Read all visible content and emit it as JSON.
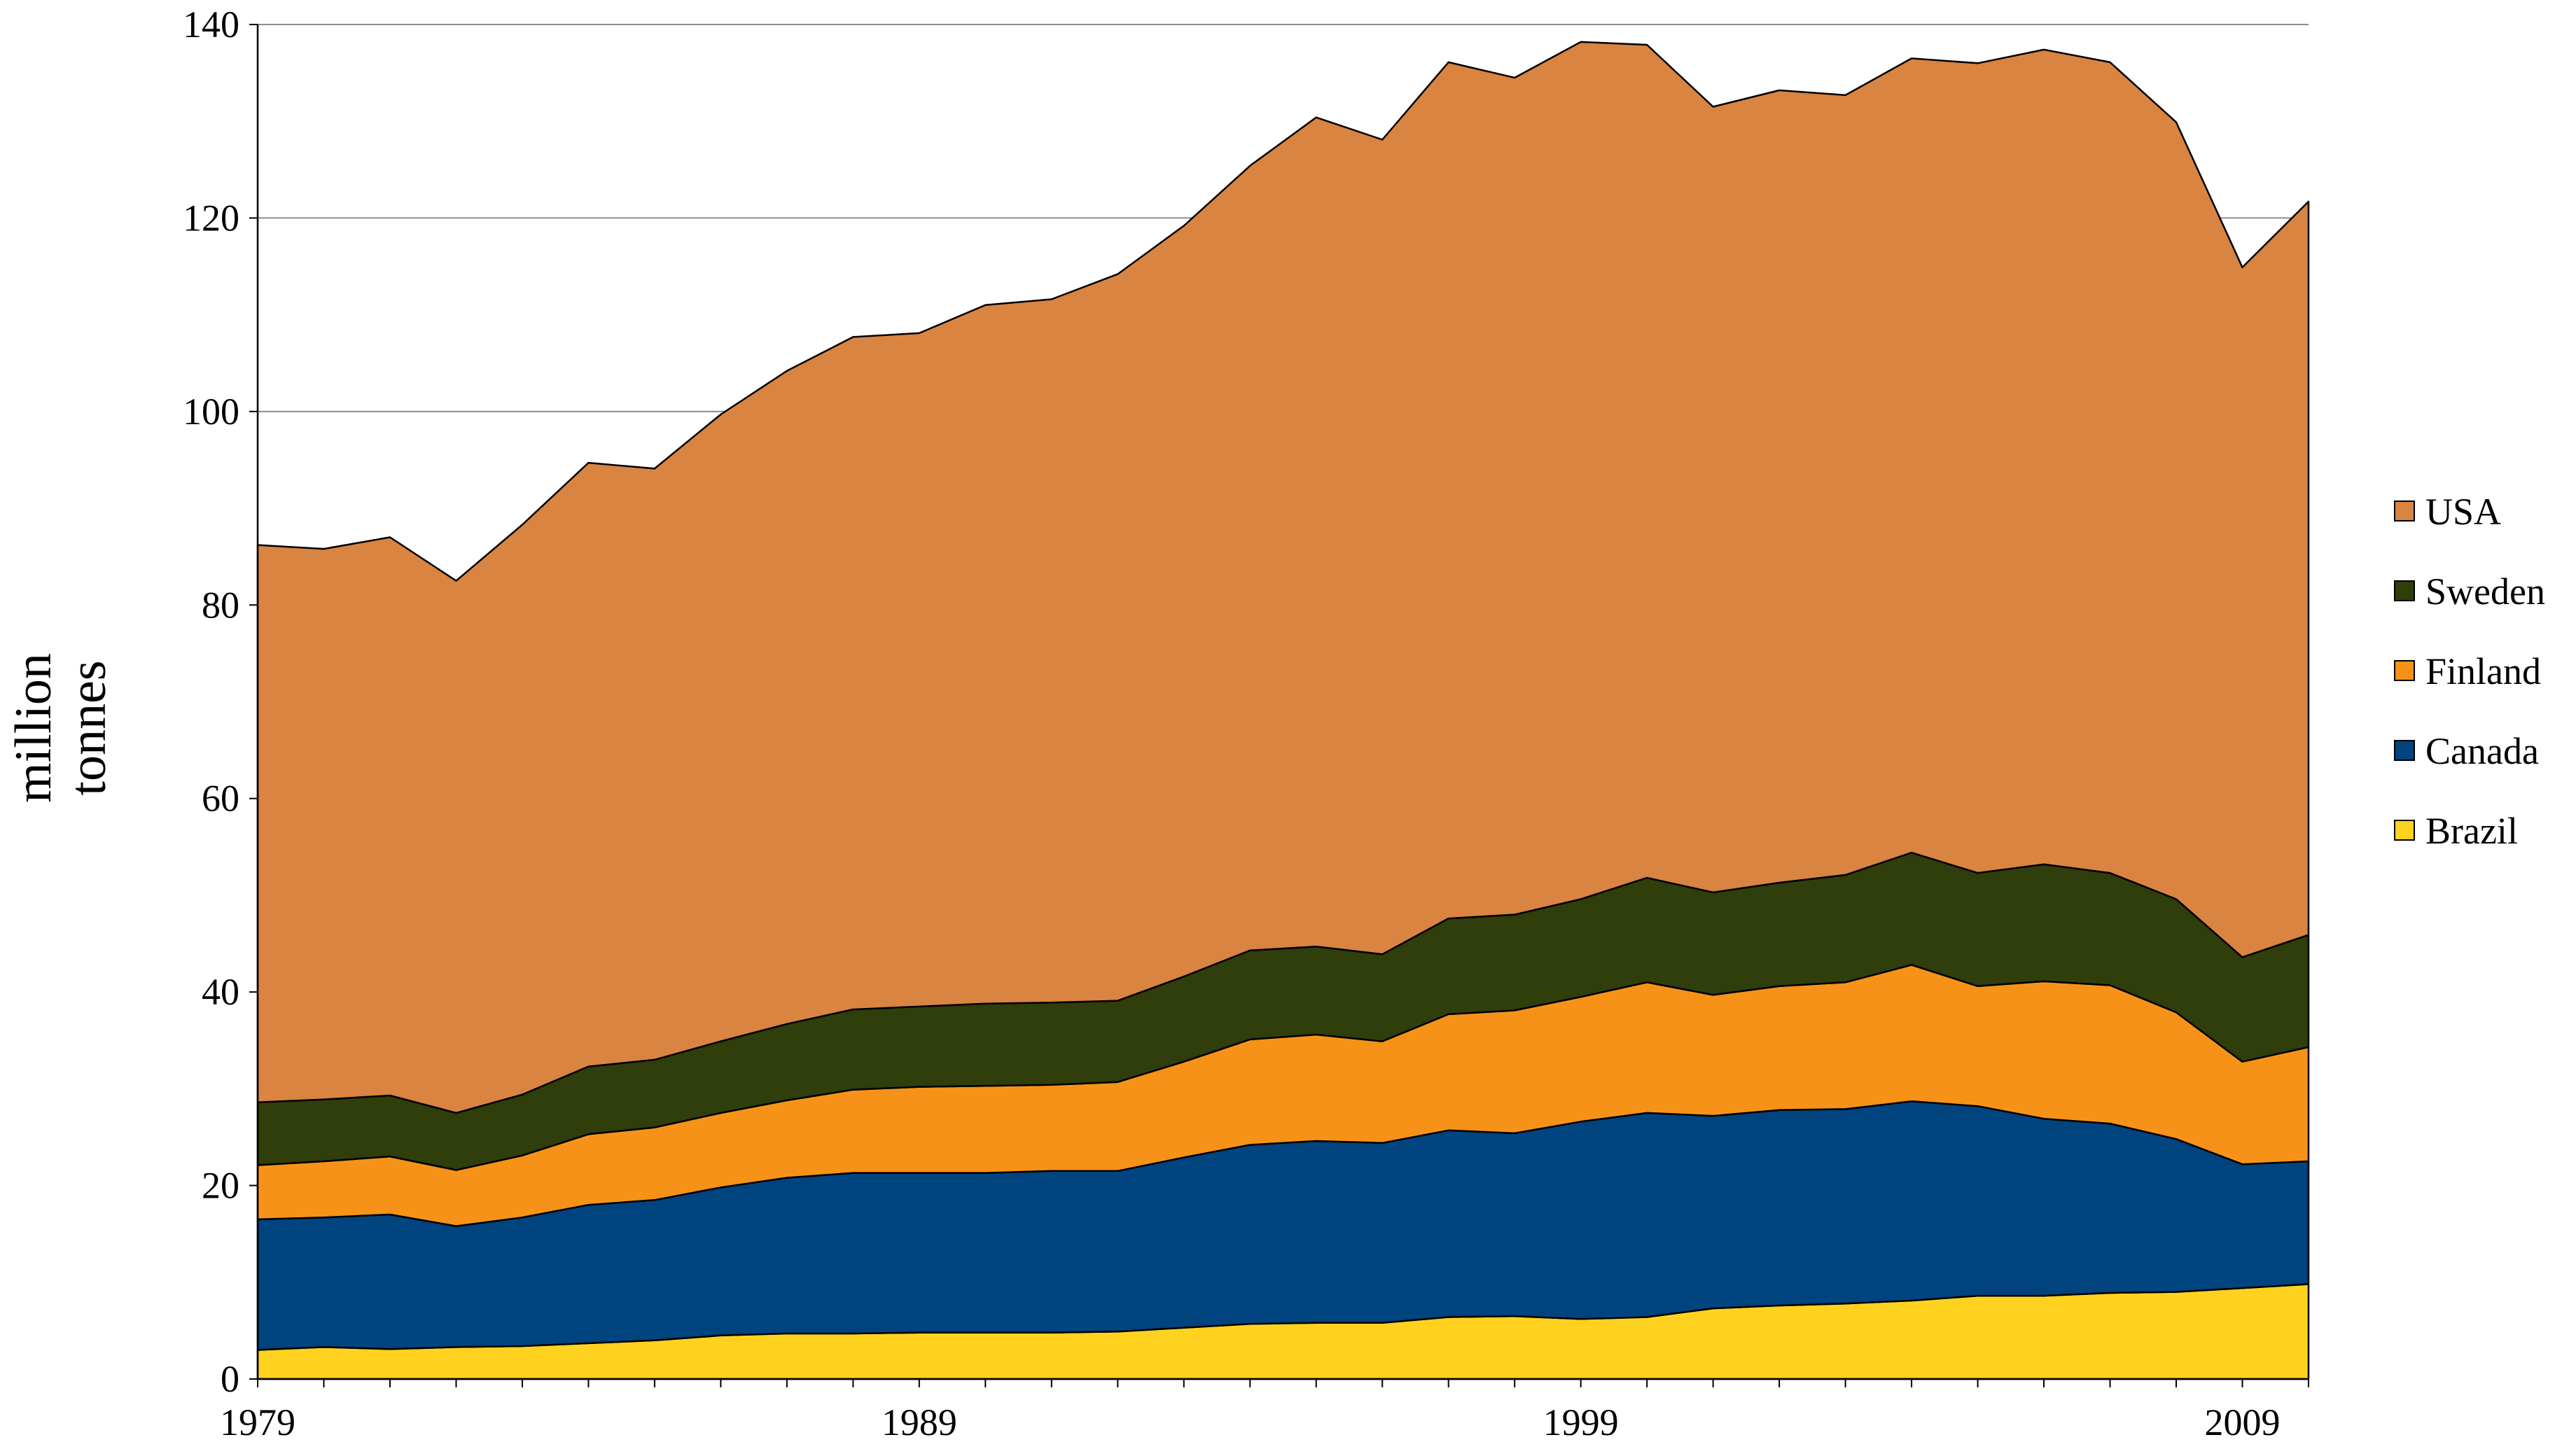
{
  "chart_data": {
    "type": "area",
    "stacked": true,
    "title": "",
    "xlabel": "",
    "ylabel": [
      "million",
      "tonnes"
    ],
    "x": [
      1979,
      1980,
      1981,
      1982,
      1983,
      1984,
      1985,
      1986,
      1987,
      1988,
      1989,
      1990,
      1991,
      1992,
      1993,
      1994,
      1995,
      1996,
      1997,
      1998,
      1999,
      2000,
      2001,
      2002,
      2003,
      2004,
      2005,
      2006,
      2007,
      2008,
      2009,
      2010
    ],
    "xticks": [
      1979,
      1989,
      1999,
      2009
    ],
    "ylim": [
      0,
      140
    ],
    "yticks": [
      0,
      20,
      40,
      60,
      80,
      100,
      120,
      140
    ],
    "grid": "horizontal",
    "legend_position": "right",
    "series": [
      {
        "name": "Brazil",
        "color": "#FFD21F",
        "values": [
          3.0,
          3.3,
          3.1,
          3.3,
          3.4,
          3.7,
          4.0,
          4.5,
          4.7,
          4.7,
          4.8,
          4.8,
          4.8,
          4.9,
          5.3,
          5.7,
          5.8,
          5.8,
          6.4,
          6.5,
          6.2,
          6.4,
          7.3,
          7.6,
          7.8,
          8.1,
          8.6,
          8.6,
          8.9,
          9.0,
          9.4,
          9.8
        ]
      },
      {
        "name": "Canada",
        "color": "#00447F",
        "values": [
          13.5,
          13.4,
          13.9,
          12.5,
          13.3,
          14.3,
          14.5,
          15.3,
          16.1,
          16.6,
          16.5,
          16.5,
          16.7,
          16.6,
          17.6,
          18.5,
          18.8,
          18.6,
          19.3,
          18.9,
          20.4,
          21.1,
          19.9,
          20.2,
          20.1,
          20.6,
          19.6,
          18.3,
          17.5,
          15.8,
          12.8,
          12.7
        ]
      },
      {
        "name": "Finland",
        "color": "#F79219",
        "values": [
          5.6,
          5.8,
          6.0,
          5.8,
          6.4,
          7.3,
          7.5,
          7.7,
          8.0,
          8.6,
          8.9,
          9.0,
          8.9,
          9.2,
          9.9,
          10.9,
          11.0,
          10.5,
          12.0,
          12.7,
          12.9,
          13.5,
          12.5,
          12.8,
          13.1,
          14.1,
          12.4,
          14.2,
          14.3,
          13.1,
          10.6,
          11.8
        ]
      },
      {
        "name": "Sweden",
        "color": "#2F3E0A",
        "values": [
          6.5,
          6.4,
          6.3,
          5.9,
          6.3,
          7.0,
          7.0,
          7.4,
          7.9,
          8.3,
          8.3,
          8.5,
          8.5,
          8.4,
          8.8,
          9.2,
          9.1,
          9.0,
          9.9,
          9.9,
          10.1,
          10.8,
          10.6,
          10.7,
          11.1,
          11.6,
          11.7,
          12.1,
          11.6,
          11.7,
          10.8,
          11.6
        ]
      },
      {
        "name": "USA",
        "color": "#D98441",
        "values": [
          57.6,
          56.9,
          57.7,
          55.0,
          58.9,
          62.4,
          61.1,
          64.8,
          67.5,
          69.5,
          69.6,
          72.2,
          72.7,
          75.1,
          77.6,
          81.1,
          85.7,
          84.2,
          88.5,
          86.5,
          88.6,
          86.1,
          81.2,
          81.9,
          80.6,
          82.1,
          83.7,
          84.2,
          83.8,
          80.3,
          71.3,
          75.8
        ]
      }
    ]
  }
}
